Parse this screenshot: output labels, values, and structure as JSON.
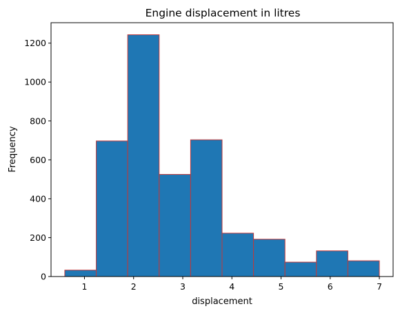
{
  "chart_data": {
    "type": "bar",
    "subtype": "histogram",
    "title": "Engine displacement in litres",
    "xlabel": "displacement",
    "ylabel": "Frequency",
    "bins": [
      {
        "start": 0.6,
        "end": 1.24,
        "count": 33
      },
      {
        "start": 1.24,
        "end": 1.88,
        "count": 697
      },
      {
        "start": 1.88,
        "end": 2.52,
        "count": 1243
      },
      {
        "start": 2.52,
        "end": 3.16,
        "count": 525
      },
      {
        "start": 3.16,
        "end": 3.8,
        "count": 703
      },
      {
        "start": 3.8,
        "end": 4.44,
        "count": 223
      },
      {
        "start": 4.44,
        "end": 5.08,
        "count": 192
      },
      {
        "start": 5.08,
        "end": 5.72,
        "count": 74
      },
      {
        "start": 5.72,
        "end": 6.36,
        "count": 132
      },
      {
        "start": 6.36,
        "end": 7.0,
        "count": 81
      }
    ],
    "xlim": [
      0.32,
      7.28
    ],
    "ylim": [
      0,
      1305
    ],
    "xticks": [
      1,
      2,
      3,
      4,
      5,
      6,
      7
    ],
    "yticks": [
      0,
      200,
      400,
      600,
      800,
      1000,
      1200
    ],
    "colors": {
      "bar_fill": "#1f77b4",
      "bar_edge": "#c0393b"
    },
    "grid": false,
    "legend": "none"
  }
}
